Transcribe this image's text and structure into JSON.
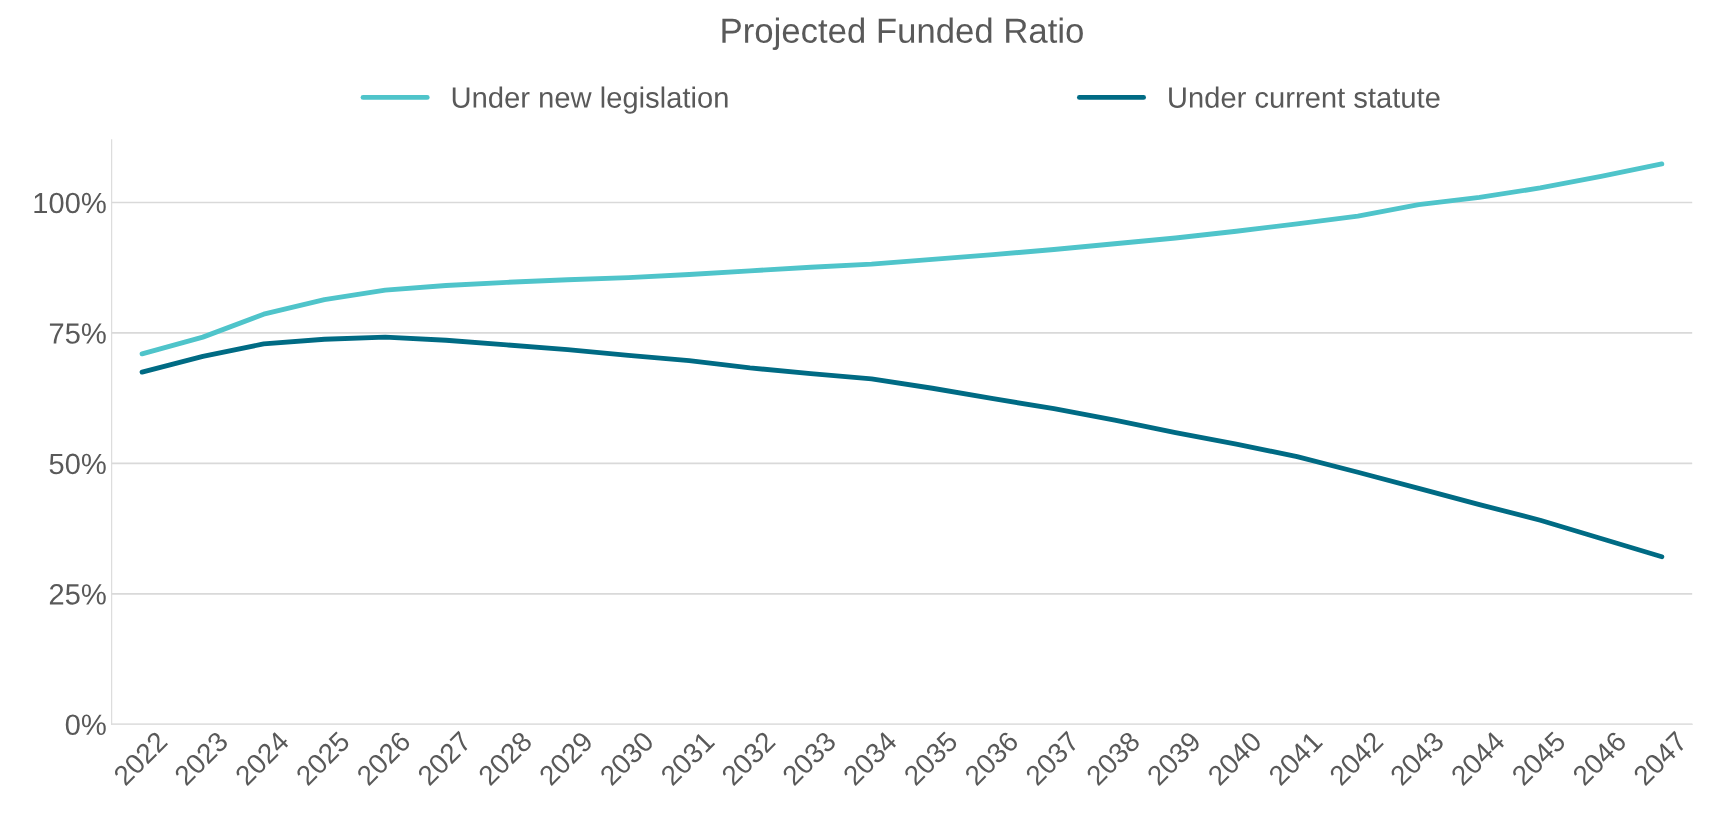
{
  "chart_data": {
    "type": "line",
    "title": "Projected Funded Ratio",
    "categories": [
      "2022",
      "2023",
      "2024",
      "2025",
      "2026",
      "2027",
      "2028",
      "2029",
      "2030",
      "2031",
      "2032",
      "2033",
      "2034",
      "2035",
      "2036",
      "2037",
      "2038",
      "2039",
      "2040",
      "2041",
      "2042",
      "2043",
      "2044",
      "2045",
      "2046",
      "2047"
    ],
    "series": [
      {
        "name": "Under new legislation",
        "color": "#4fc4ca",
        "values": [
          71.0,
          74.2,
          78.6,
          81.4,
          83.2,
          84.1,
          84.7,
          85.2,
          85.6,
          86.2,
          86.9,
          87.6,
          88.2,
          89.1,
          90.0,
          91.0,
          92.1,
          93.2,
          94.5,
          95.9,
          97.4,
          99.6,
          101.0,
          102.8,
          105.0,
          107.4
        ]
      },
      {
        "name": "Under current statute",
        "color": "#006b84",
        "values": [
          67.5,
          70.5,
          72.9,
          73.8,
          74.2,
          73.6,
          72.7,
          71.8,
          70.7,
          69.7,
          68.3,
          67.2,
          66.2,
          64.4,
          62.4,
          60.5,
          58.3,
          55.9,
          53.7,
          51.3,
          48.3,
          45.2,
          42.1,
          39.1,
          35.6,
          32.1
        ]
      }
    ],
    "ylim": [
      0,
      112
    ],
    "yticks": [
      {
        "value": 0,
        "label": "0%"
      },
      {
        "value": 25,
        "label": "25%"
      },
      {
        "value": 50,
        "label": "50%"
      },
      {
        "value": 75,
        "label": "75%"
      },
      {
        "value": 100,
        "label": "100%"
      }
    ],
    "grid": "y",
    "legend": "top",
    "line_style": "solid",
    "marker": "none"
  }
}
